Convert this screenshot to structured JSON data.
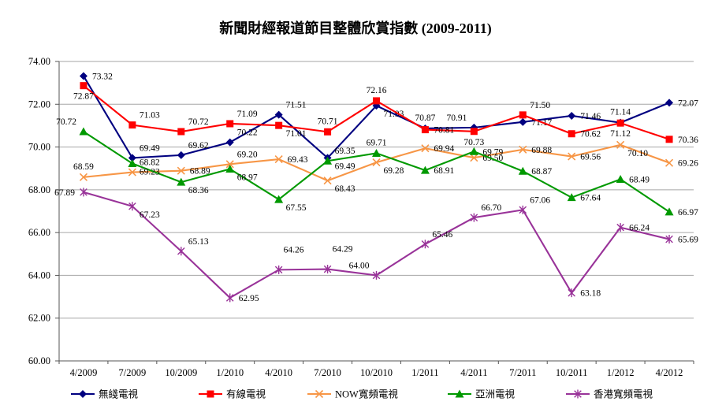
{
  "title": "新聞財經報道節目整體欣賞指數 (2009-2011)",
  "chart_data": {
    "type": "line",
    "title": "新聞財經報道節目整體欣賞指數 (2009-2011)",
    "categories": [
      "4/2009",
      "7/2009",
      "10/2009",
      "1/2010",
      "4/2010",
      "7/2010",
      "10/2010",
      "1/2011",
      "4/2011",
      "7/2011",
      "10/2011",
      "1/2012",
      "4/2012"
    ],
    "xlabel": "",
    "ylabel": "",
    "ylim": [
      60,
      74
    ],
    "y_tick_step": 2,
    "y_tick_labels": [
      "74.00",
      "72.00",
      "70.00",
      "68.00",
      "66.00",
      "64.00",
      "62.00",
      "60.00"
    ],
    "grid": true,
    "legend_position": "bottom",
    "series": [
      {
        "name": "無綫電視",
        "color": "#000080",
        "marker": "diamond",
        "values": [
          73.32,
          69.49,
          69.62,
          70.22,
          71.51,
          69.49,
          71.93,
          70.87,
          70.91,
          71.17,
          71.46,
          71.14,
          72.07
        ]
      },
      {
        "name": "有線電視",
        "color": "#FF0000",
        "marker": "square",
        "values": [
          72.87,
          71.03,
          70.72,
          71.09,
          71.01,
          70.71,
          72.16,
          70.81,
          70.73,
          71.5,
          70.62,
          71.12,
          70.36
        ]
      },
      {
        "name": "NOW寬頻電視",
        "color": "#F79646",
        "marker": "x",
        "values": [
          68.59,
          68.82,
          68.89,
          69.2,
          69.43,
          68.43,
          69.28,
          69.94,
          69.5,
          69.88,
          69.56,
          70.1,
          69.26
        ]
      },
      {
        "name": "亞洲電視",
        "color": "#009900",
        "marker": "triangle",
        "values": [
          70.72,
          69.23,
          68.36,
          68.97,
          67.55,
          69.35,
          69.71,
          68.91,
          69.79,
          68.87,
          67.64,
          68.49,
          66.97
        ]
      },
      {
        "name": "香港寬頻電視",
        "color": "#993399",
        "marker": "star",
        "values": [
          67.89,
          67.23,
          65.13,
          62.95,
          64.26,
          64.29,
          64.0,
          65.46,
          66.7,
          67.06,
          63.18,
          66.24,
          65.69
        ]
      }
    ]
  }
}
